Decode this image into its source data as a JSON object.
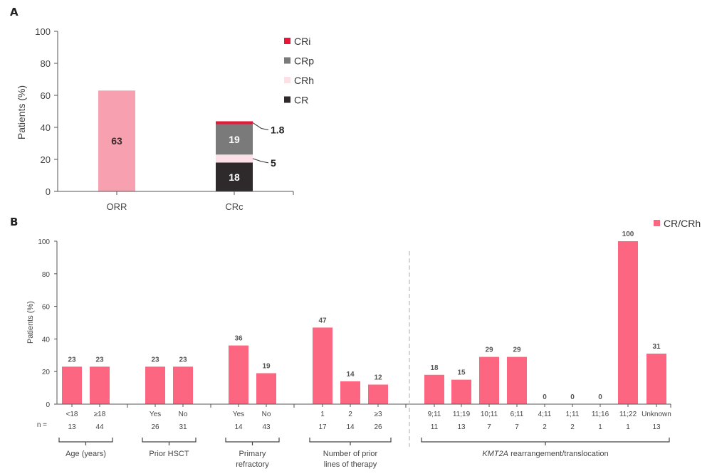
{
  "chart_data": [
    {
      "panel": "A",
      "type": "bar",
      "stacked": true,
      "ylabel": "Patients (%)",
      "ylim": [
        0,
        100
      ],
      "yticks": [
        0,
        20,
        40,
        60,
        80,
        100
      ],
      "categories": [
        "ORR",
        "CRc"
      ],
      "series": [
        {
          "name": "ORR",
          "category": "ORR",
          "value": 63,
          "label": "63",
          "color": "#f7a1b0"
        },
        {
          "name": "CR",
          "category": "CRc",
          "value": 18,
          "label": "18",
          "color": "#2e2a2b"
        },
        {
          "name": "CRh",
          "category": "CRc",
          "value": 5,
          "label": "5",
          "color": "#fde0e6"
        },
        {
          "name": "CRp",
          "category": "CRc",
          "value": 19,
          "label": "19",
          "color": "#7a7a7a"
        },
        {
          "name": "CRi",
          "category": "CRc",
          "value": 1.8,
          "label": "1.8",
          "color": "#e8173a"
        }
      ],
      "legend": [
        "CRi",
        "CRp",
        "CRh",
        "CR"
      ],
      "legend_position": "top-right"
    },
    {
      "panel": "B",
      "type": "bar",
      "ylabel": "Patients (%)",
      "ylim": [
        0,
        100
      ],
      "yticks": [
        0,
        20,
        40,
        60,
        80,
        100
      ],
      "legend": [
        "CR/CRh"
      ],
      "legend_position": "top-right",
      "color": "#fd6680",
      "n_label": "n =",
      "groups": [
        {
          "name": "Age (years)",
          "name_lines": [
            "Age (years)"
          ],
          "categories": [
            "<18",
            "≥18"
          ],
          "values": [
            23,
            23
          ],
          "n": [
            "13",
            "44"
          ]
        },
        {
          "name": "Prior HSCT",
          "name_lines": [
            "Prior HSCT"
          ],
          "categories": [
            "Yes",
            "No"
          ],
          "values": [
            23,
            23
          ],
          "n": [
            "26",
            "31"
          ]
        },
        {
          "name": "Primary refractory",
          "name_lines": [
            "Primary",
            "refractory"
          ],
          "categories": [
            "Yes",
            "No"
          ],
          "values": [
            36,
            19
          ],
          "n": [
            "14",
            "43"
          ]
        },
        {
          "name": "Number of prior lines of therapy",
          "name_lines": [
            "Number of prior",
            "lines of therapy"
          ],
          "categories": [
            "1",
            "2",
            "≥3"
          ],
          "values": [
            47,
            14,
            12
          ],
          "n": [
            "17",
            "14",
            "26"
          ]
        },
        {
          "name": "KMT2A rearrangement/translocation",
          "name_italic": "KMT2A",
          "name_rest": " rearrangement/translocation",
          "categories": [
            "9;11",
            "11;19",
            "10;11",
            "6;11",
            "4;11",
            "1;11",
            "11;16",
            "11;22",
            "Unknown"
          ],
          "values": [
            18,
            15,
            29,
            29,
            0,
            0,
            0,
            100,
            31
          ],
          "n": [
            "11",
            "13",
            "7",
            "7",
            "2",
            "2",
            "1",
            "1",
            "13"
          ]
        }
      ]
    }
  ],
  "panels": {
    "a_label": "A",
    "b_label": "B"
  }
}
